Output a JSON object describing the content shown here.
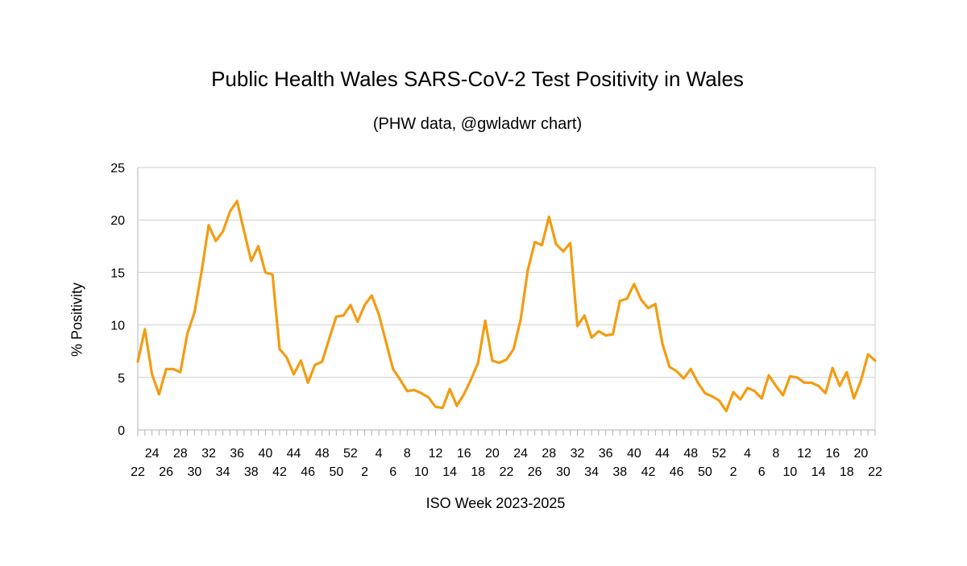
{
  "chart_data": {
    "type": "line",
    "title": "Public Health Wales SARS-CoV-2 Test Positivity in Wales",
    "subtitle": "(PHW data, @gwladwr chart)",
    "xlabel": "ISO Week 2023-2025",
    "ylabel": "%  Positivity",
    "ylim": [
      0,
      25
    ],
    "yticks": [
      0,
      5,
      10,
      15,
      20,
      25
    ],
    "grid": true,
    "line_color": "#F39C12",
    "x_tick_labels_upper": [
      "24",
      "28",
      "32",
      "36",
      "40",
      "44",
      "48",
      "52",
      "4",
      "8",
      "12",
      "16",
      "20",
      "24",
      "28",
      "32",
      "36",
      "40",
      "44",
      "48",
      "52",
      "4",
      "8",
      "12",
      "16",
      "20"
    ],
    "x_tick_labels_lower": [
      "22",
      "26",
      "30",
      "34",
      "38",
      "42",
      "46",
      "50",
      "2",
      "6",
      "10",
      "14",
      "18",
      "22",
      "26",
      "30",
      "34",
      "38",
      "42",
      "46",
      "50",
      "2",
      "6",
      "10",
      "14",
      "18",
      "22"
    ],
    "x": [
      "2023-W22",
      "2023-W23",
      "2023-W24",
      "2023-W25",
      "2023-W26",
      "2023-W27",
      "2023-W28",
      "2023-W29",
      "2023-W30",
      "2023-W31",
      "2023-W32",
      "2023-W33",
      "2023-W34",
      "2023-W35",
      "2023-W36",
      "2023-W37",
      "2023-W38",
      "2023-W39",
      "2023-W40",
      "2023-W41",
      "2023-W42",
      "2023-W43",
      "2023-W44",
      "2023-W45",
      "2023-W46",
      "2023-W47",
      "2023-W48",
      "2023-W49",
      "2023-W50",
      "2023-W51",
      "2023-W52",
      "2024-W01",
      "2024-W02",
      "2024-W03",
      "2024-W04",
      "2024-W05",
      "2024-W06",
      "2024-W07",
      "2024-W08",
      "2024-W09",
      "2024-W10",
      "2024-W11",
      "2024-W12",
      "2024-W13",
      "2024-W14",
      "2024-W15",
      "2024-W16",
      "2024-W17",
      "2024-W18",
      "2024-W19",
      "2024-W20",
      "2024-W21",
      "2024-W22",
      "2024-W23",
      "2024-W24",
      "2024-W25",
      "2024-W26",
      "2024-W27",
      "2024-W28",
      "2024-W29",
      "2024-W30",
      "2024-W31",
      "2024-W32",
      "2024-W33",
      "2024-W34",
      "2024-W35",
      "2024-W36",
      "2024-W37",
      "2024-W38",
      "2024-W39",
      "2024-W40",
      "2024-W41",
      "2024-W42",
      "2024-W43",
      "2024-W44",
      "2024-W45",
      "2024-W46",
      "2024-W47",
      "2024-W48",
      "2024-W49",
      "2024-W50",
      "2024-W51",
      "2024-W52",
      "2025-W01",
      "2025-W02",
      "2025-W03",
      "2025-W04",
      "2025-W05",
      "2025-W06",
      "2025-W07",
      "2025-W08",
      "2025-W09",
      "2025-W10",
      "2025-W11",
      "2025-W12",
      "2025-W13",
      "2025-W14",
      "2025-W15",
      "2025-W16",
      "2025-W17",
      "2025-W18",
      "2025-W19",
      "2025-W20",
      "2025-W21",
      "2025-W22"
    ],
    "series": [
      {
        "name": "% Positivity",
        "values": [
          6.5,
          9.6,
          5.3,
          3.4,
          5.8,
          5.8,
          5.5,
          9.2,
          11.2,
          15.1,
          19.5,
          18.0,
          18.9,
          20.8,
          21.8,
          18.9,
          16.1,
          17.5,
          15.0,
          14.8,
          7.7,
          6.9,
          5.3,
          6.6,
          4.5,
          6.2,
          6.5,
          8.7,
          10.8,
          10.9,
          11.9,
          10.3,
          11.9,
          12.8,
          11.0,
          8.4,
          5.8,
          4.8,
          3.7,
          3.8,
          3.5,
          3.1,
          2.2,
          2.1,
          3.9,
          2.3,
          3.4,
          4.8,
          6.4,
          10.4,
          6.6,
          6.4,
          6.7,
          7.7,
          10.5,
          15.2,
          17.9,
          17.6,
          20.3,
          17.7,
          17.0,
          17.8,
          9.9,
          10.9,
          8.8,
          9.4,
          9.0,
          9.1,
          12.3,
          12.5,
          13.9,
          12.4,
          11.6,
          12.0,
          8.2,
          6.0,
          5.6,
          4.9,
          5.8,
          4.5,
          3.5,
          3.2,
          2.8,
          1.8,
          3.6,
          2.9,
          4.0,
          3.7,
          3.0,
          5.2,
          4.2,
          3.3,
          5.1,
          5.0,
          4.5,
          4.5,
          4.2,
          3.5,
          5.9,
          4.2,
          5.5,
          3.0,
          4.7,
          7.2,
          6.6
        ]
      }
    ]
  }
}
